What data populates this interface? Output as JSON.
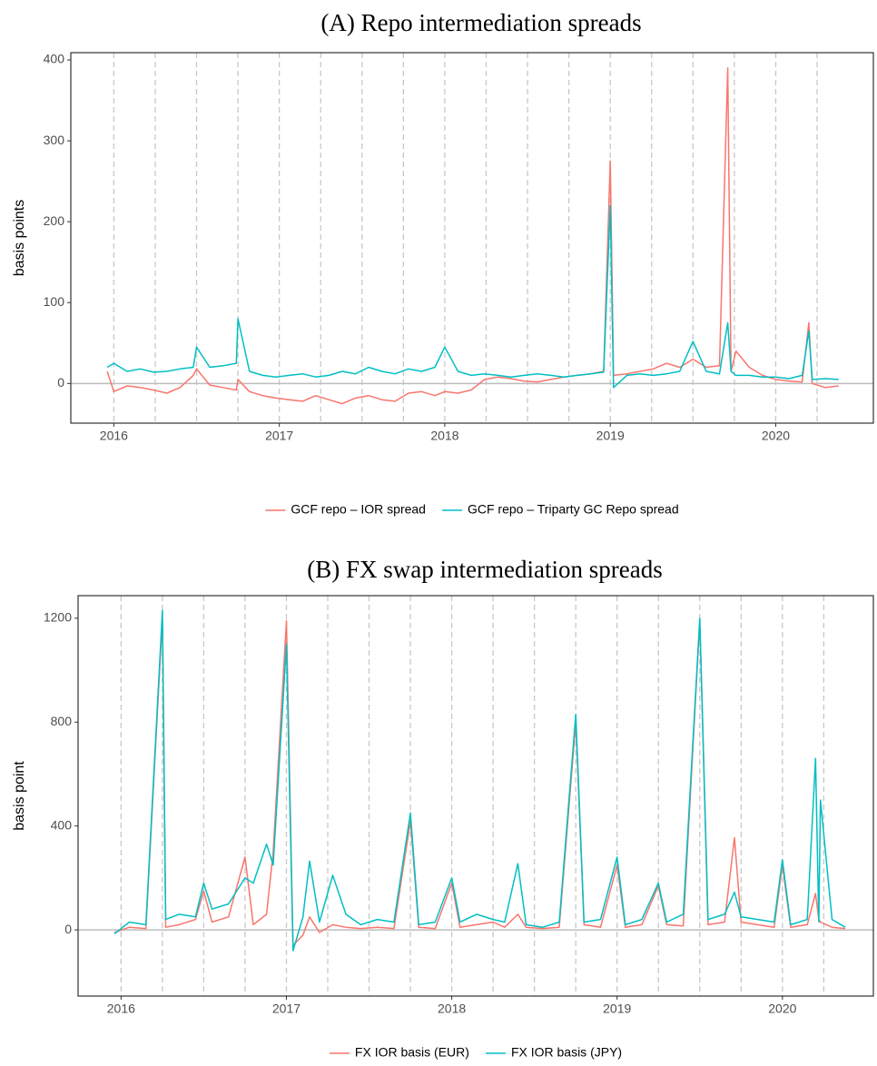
{
  "chart_data": [
    {
      "type": "line",
      "title": "(A) Repo intermediation spreads",
      "y_label": "basis points",
      "x": [
        2015.96,
        2016.0,
        2016.08,
        2016.16,
        2016.24,
        2016.32,
        2016.4,
        2016.48,
        2016.5,
        2016.58,
        2016.66,
        2016.74,
        2016.75,
        2016.82,
        2016.9,
        2016.98,
        2017.06,
        2017.14,
        2017.22,
        2017.3,
        2017.38,
        2017.46,
        2017.54,
        2017.62,
        2017.7,
        2017.78,
        2017.86,
        2017.94,
        2018.0,
        2018.08,
        2018.16,
        2018.24,
        2018.32,
        2018.4,
        2018.48,
        2018.56,
        2018.64,
        2018.72,
        2018.8,
        2018.88,
        2018.96,
        2019.0,
        2019.02,
        2019.1,
        2019.18,
        2019.26,
        2019.34,
        2019.42,
        2019.5,
        2019.58,
        2019.66,
        2019.71,
        2019.73,
        2019.76,
        2019.84,
        2019.92,
        2020.0,
        2020.08,
        2020.16,
        2020.2,
        2020.22,
        2020.3,
        2020.38
      ],
      "series": [
        {
          "name": "GCF repo – IOR spread",
          "color": "#F8766D",
          "values": [
            15,
            -10,
            -3,
            -5,
            -8,
            -12,
            -5,
            10,
            18,
            -2,
            -5,
            -8,
            5,
            -10,
            -15,
            -18,
            -20,
            -22,
            -15,
            -20,
            -25,
            -18,
            -15,
            -20,
            -22,
            -12,
            -10,
            -15,
            -10,
            -12,
            -8,
            5,
            8,
            6,
            3,
            2,
            5,
            8,
            10,
            12,
            15,
            275,
            10,
            12,
            15,
            18,
            25,
            20,
            30,
            20,
            22,
            390,
            15,
            40,
            20,
            10,
            5,
            3,
            2,
            75,
            0,
            -5,
            -3
          ]
        },
        {
          "name": "GCF repo – Triparty GC Repo spread",
          "color": "#00BFC4",
          "values": [
            20,
            25,
            15,
            18,
            14,
            15,
            18,
            20,
            45,
            20,
            22,
            25,
            80,
            15,
            10,
            8,
            10,
            12,
            8,
            10,
            15,
            12,
            20,
            15,
            12,
            18,
            15,
            20,
            45,
            15,
            10,
            12,
            10,
            8,
            10,
            12,
            10,
            8,
            10,
            12,
            14,
            220,
            -5,
            10,
            12,
            10,
            12,
            15,
            52,
            15,
            12,
            75,
            15,
            10,
            10,
            8,
            8,
            6,
            10,
            65,
            5,
            6,
            5
          ]
        }
      ],
      "xlim": [
        2015.74,
        2020.59
      ],
      "ylim": [
        -49,
        409
      ],
      "xticks": [
        2016,
        2017,
        2018,
        2019,
        2020
      ],
      "yticks": [
        0,
        100,
        200,
        300,
        400
      ],
      "vlines": [
        2016,
        2016.25,
        2016.5,
        2016.75,
        2017,
        2017.25,
        2017.5,
        2017.75,
        2018,
        2018.25,
        2018.5,
        2018.75,
        2019,
        2019.25,
        2019.5,
        2019.75,
        2020,
        2020.25
      ],
      "hline": 0
    },
    {
      "type": "line",
      "title": "(B) FX swap intermediation spreads",
      "y_label": "basis point",
      "x": [
        2015.96,
        2016.05,
        2016.15,
        2016.25,
        2016.27,
        2016.35,
        2016.45,
        2016.5,
        2016.55,
        2016.65,
        2016.75,
        2016.8,
        2016.88,
        2016.92,
        2017.0,
        2017.04,
        2017.1,
        2017.14,
        2017.2,
        2017.28,
        2017.36,
        2017.45,
        2017.55,
        2017.65,
        2017.75,
        2017.8,
        2017.9,
        2018.0,
        2018.05,
        2018.15,
        2018.25,
        2018.32,
        2018.4,
        2018.45,
        2018.55,
        2018.65,
        2018.75,
        2018.8,
        2018.9,
        2019.0,
        2019.05,
        2019.15,
        2019.25,
        2019.3,
        2019.4,
        2019.5,
        2019.55,
        2019.65,
        2019.71,
        2019.75,
        2019.85,
        2019.95,
        2020.0,
        2020.05,
        2020.15,
        2020.2,
        2020.22,
        2020.23,
        2020.3,
        2020.38
      ],
      "series": [
        {
          "name": "FX IOR basis (EUR)",
          "color": "#F8766D",
          "values": [
            -10,
            10,
            5,
            1200,
            10,
            20,
            40,
            150,
            30,
            50,
            280,
            20,
            60,
            300,
            1190,
            -60,
            -20,
            50,
            -10,
            20,
            10,
            5,
            10,
            5,
            420,
            10,
            5,
            180,
            10,
            20,
            30,
            10,
            60,
            10,
            5,
            10,
            800,
            20,
            10,
            250,
            10,
            20,
            170,
            20,
            15,
            1190,
            20,
            30,
            355,
            30,
            20,
            10,
            250,
            10,
            20,
            140,
            40,
            30,
            10,
            5
          ]
        },
        {
          "name": "FX IOR basis (JPY)",
          "color": "#00BFC4",
          "values": [
            -15,
            30,
            20,
            1230,
            40,
            60,
            50,
            180,
            80,
            100,
            200,
            180,
            330,
            250,
            1100,
            -80,
            50,
            265,
            30,
            210,
            60,
            20,
            40,
            30,
            450,
            20,
            30,
            200,
            30,
            60,
            40,
            30,
            255,
            20,
            10,
            30,
            830,
            30,
            40,
            280,
            20,
            40,
            180,
            30,
            60,
            1200,
            40,
            60,
            145,
            50,
            40,
            30,
            270,
            20,
            40,
            660,
            30,
            500,
            40,
            10
          ]
        }
      ],
      "xlim": [
        2015.74,
        2020.55
      ],
      "ylim": [
        -255,
        1287
      ],
      "xticks": [
        2016,
        2017,
        2018,
        2019,
        2020
      ],
      "yticks": [
        0,
        400,
        800,
        1200
      ],
      "vlines": [
        2016,
        2016.25,
        2016.5,
        2016.75,
        2017,
        2017.25,
        2017.5,
        2017.75,
        2018,
        2018.25,
        2018.5,
        2018.75,
        2019,
        2019.25,
        2019.5,
        2019.75,
        2020,
        2020.25
      ],
      "hline": 0
    }
  ]
}
